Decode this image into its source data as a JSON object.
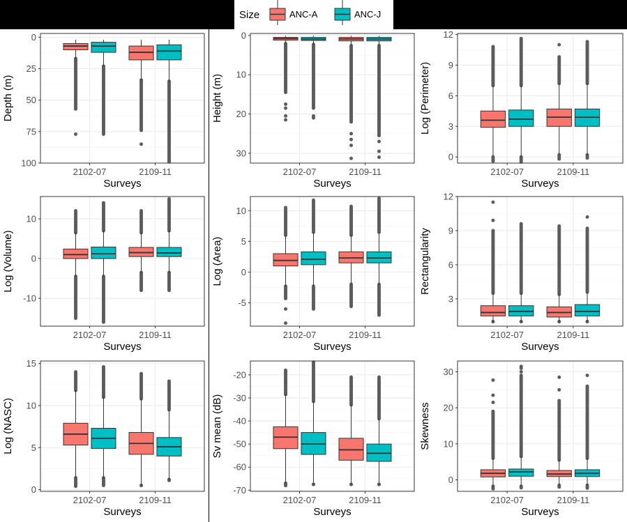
{
  "legend": {
    "title": "Size",
    "items": [
      {
        "label": "ANC-A",
        "color": "#F8766D"
      },
      {
        "label": "ANC-J",
        "color": "#00BFC4"
      }
    ],
    "placement": "top-center"
  },
  "colors": {
    "panel_background": "#FFFFFF",
    "grid_major": "#EBEBEB",
    "grid_minor": "#F5F5F5",
    "panel_border": "#333333",
    "outlier": "#5C5C5C",
    "box_outline": "#333333"
  },
  "chart_data": [
    {
      "type": "box",
      "ylabel": "Depth (m)",
      "xlabel": "Surveys",
      "reversed": true,
      "ylim": [
        -3,
        100
      ],
      "yticks": [
        0,
        25,
        50,
        75,
        100
      ],
      "categories": [
        "2102-07",
        "2109-11"
      ],
      "series": [
        {
          "name": "ANC-A",
          "boxes": [
            {
              "lower_whisker": 2,
              "q1": 5,
              "median": 7,
              "q3": 10,
              "upper_whisker": 17,
              "outliers_from": 17,
              "outliers_to": 57,
              "extreme_outliers": [
                77
              ]
            },
            {
              "lower_whisker": 2,
              "q1": 7,
              "median": 12,
              "q3": 18,
              "upper_whisker": 34,
              "outliers_from": 34,
              "outliers_to": 74,
              "extreme_outliers": [
                85
              ]
            }
          ]
        },
        {
          "name": "ANC-J",
          "boxes": [
            {
              "lower_whisker": 2,
              "q1": 4,
              "median": 7,
              "q3": 12,
              "upper_whisker": 23,
              "outliers_from": 23,
              "outliers_to": 77,
              "extreme_outliers": []
            },
            {
              "lower_whisker": 2,
              "q1": 6,
              "median": 11,
              "q3": 18,
              "upper_whisker": 35,
              "outliers_from": 35,
              "outliers_to": 99,
              "extreme_outliers": []
            }
          ]
        }
      ]
    },
    {
      "type": "box",
      "ylabel": "Height (m)",
      "xlabel": "Surveys",
      "reversed": true,
      "ylim": [
        -0.5,
        32.5
      ],
      "yticks": [
        0,
        10,
        20,
        30
      ],
      "categories": [
        "2102-07",
        "2109-11"
      ],
      "series": [
        {
          "name": "ANC-A",
          "boxes": [
            {
              "lower_whisker": 0.1,
              "q1": 0.5,
              "median": 0.8,
              "q3": 1.2,
              "upper_whisker": 2.1,
              "outliers_from": 2.1,
              "outliers_to": 14.5,
              "extreme_outliers": [
                17.5,
                18.5,
                20.5,
                21.5
              ]
            },
            {
              "lower_whisker": 0.1,
              "q1": 0.5,
              "median": 0.9,
              "q3": 1.4,
              "upper_whisker": 2.6,
              "outliers_from": 2.6,
              "outliers_to": 22,
              "extreme_outliers": [
                25,
                26.5,
                28,
                31.3
              ]
            }
          ]
        },
        {
          "name": "ANC-J",
          "boxes": [
            {
              "lower_whisker": 0.1,
              "q1": 0.5,
              "median": 0.9,
              "q3": 1.3,
              "upper_whisker": 2.3,
              "outliers_from": 2.3,
              "outliers_to": 18.5,
              "extreme_outliers": [
                20.5,
                21
              ]
            },
            {
              "lower_whisker": 0.1,
              "q1": 0.5,
              "median": 0.9,
              "q3": 1.4,
              "upper_whisker": 2.6,
              "outliers_from": 2.6,
              "outliers_to": 25.5,
              "extreme_outliers": [
                27,
                29.5,
                31
              ]
            }
          ]
        }
      ]
    },
    {
      "type": "box",
      "ylabel": "Log (Perimeter)",
      "xlabel": "Surveys",
      "reversed": false,
      "ylim": [
        -0.6,
        12.1
      ],
      "yticks": [
        0,
        3,
        6,
        9,
        12
      ],
      "categories": [
        "2102-07",
        "2109-11"
      ],
      "series": [
        {
          "name": "ANC-A",
          "boxes": [
            {
              "lower_whisker": 0,
              "q1": 2.9,
              "median": 3.6,
              "q3": 4.5,
              "upper_whisker": 7.0,
              "outliers_from": 7.0,
              "outliers_to": 10.8,
              "low_outliers_from": -0.4,
              "low_outliers_to": 0,
              "extreme_outliers": []
            },
            {
              "lower_whisker": 0.2,
              "q1": 3.0,
              "median": 3.9,
              "q3": 4.7,
              "upper_whisker": 7.2,
              "outliers_from": 7.2,
              "outliers_to": 9.8,
              "low_outliers_from": -0.2,
              "low_outliers_to": 0.2,
              "extreme_outliers": [
                11.0
              ]
            }
          ]
        },
        {
          "name": "ANC-J",
          "boxes": [
            {
              "lower_whisker": 0,
              "q1": 3.0,
              "median": 3.7,
              "q3": 4.6,
              "upper_whisker": 7.0,
              "outliers_from": 7.0,
              "outliers_to": 11.6,
              "low_outliers_from": -0.5,
              "low_outliers_to": 0,
              "extreme_outliers": []
            },
            {
              "lower_whisker": 0.2,
              "q1": 3.0,
              "median": 3.9,
              "q3": 4.7,
              "upper_whisker": 7.2,
              "outliers_from": 7.2,
              "outliers_to": 11.3,
              "low_outliers_from": -0.1,
              "low_outliers_to": 0.2,
              "extreme_outliers": []
            }
          ]
        }
      ]
    },
    {
      "type": "box",
      "ylabel": "Log (Volume)",
      "xlabel": "Surveys",
      "reversed": false,
      "ylim": [
        -17,
        15.6
      ],
      "yticks": [
        -10,
        0,
        10
      ],
      "categories": [
        "2102-07",
        "2109-11"
      ],
      "series": [
        {
          "name": "ANC-A",
          "boxes": [
            {
              "lower_whisker": -4.5,
              "q1": 0,
              "median": 1,
              "q3": 2.4,
              "upper_whisker": 6.5,
              "outliers_from": 6.5,
              "outliers_to": 12,
              "low_outliers_from": -15,
              "low_outliers_to": -4.5,
              "extreme_outliers": []
            },
            {
              "lower_whisker": -3.5,
              "q1": 0.5,
              "median": 1.5,
              "q3": 2.8,
              "upper_whisker": 6.5,
              "outliers_from": 6.5,
              "outliers_to": 12,
              "low_outliers_from": -8,
              "low_outliers_to": -3.5,
              "extreme_outliers": []
            }
          ]
        },
        {
          "name": "ANC-J",
          "boxes": [
            {
              "lower_whisker": -4.5,
              "q1": 0,
              "median": 1.2,
              "q3": 2.9,
              "upper_whisker": 7.0,
              "outliers_from": 7.0,
              "outliers_to": 14,
              "low_outliers_from": -16,
              "low_outliers_to": -4.5,
              "extreme_outliers": []
            },
            {
              "lower_whisker": -3.5,
              "q1": 0.5,
              "median": 1.4,
              "q3": 2.8,
              "upper_whisker": 7.0,
              "outliers_from": 7.0,
              "outliers_to": 15,
              "low_outliers_from": -8,
              "low_outliers_to": -3.5,
              "extreme_outliers": []
            }
          ]
        }
      ]
    },
    {
      "type": "box",
      "ylabel": "Log (Area)",
      "xlabel": "Surveys",
      "reversed": false,
      "ylim": [
        -8.8,
        12.3
      ],
      "yticks": [
        -5,
        0,
        5,
        10
      ],
      "categories": [
        "2102-07",
        "2109-11"
      ],
      "series": [
        {
          "name": "ANC-A",
          "boxes": [
            {
              "lower_whisker": -2.3,
              "q1": 1,
              "median": 1.9,
              "q3": 3,
              "upper_whisker": 6,
              "outliers_from": 6,
              "outliers_to": 10.5,
              "low_outliers_from": -4.3,
              "low_outliers_to": -2.3,
              "extreme_outliers": [
                -6,
                -8.3
              ]
            },
            {
              "lower_whisker": -2,
              "q1": 1.5,
              "median": 2.3,
              "q3": 3.3,
              "upper_whisker": 6,
              "outliers_from": 6,
              "outliers_to": 10.7,
              "low_outliers_from": -5.6,
              "low_outliers_to": -2,
              "extreme_outliers": []
            }
          ]
        },
        {
          "name": "ANC-J",
          "boxes": [
            {
              "lower_whisker": -2.3,
              "q1": 1.2,
              "median": 2.1,
              "q3": 3.3,
              "upper_whisker": 6.5,
              "outliers_from": 6.5,
              "outliers_to": 11.7,
              "low_outliers_from": -6,
              "low_outliers_to": -2.3,
              "extreme_outliers": []
            },
            {
              "lower_whisker": -2,
              "q1": 1.5,
              "median": 2.3,
              "q3": 3.3,
              "upper_whisker": 6.5,
              "outliers_from": 6.5,
              "outliers_to": 12,
              "low_outliers_from": -7,
              "low_outliers_to": -2,
              "extreme_outliers": []
            }
          ]
        }
      ]
    },
    {
      "type": "box",
      "ylabel": "Rectangularity",
      "xlabel": "Surveys",
      "reversed": false,
      "ylim": [
        0.6,
        12
      ],
      "yticks": [
        3,
        6,
        9,
        12
      ],
      "categories": [
        "2102-07",
        "2109-11"
      ],
      "series": [
        {
          "name": "ANC-A",
          "boxes": [
            {
              "lower_whisker": 1,
              "q1": 1.5,
              "median": 1.8,
              "q3": 2.4,
              "upper_whisker": 3.5,
              "outliers_from": 3.5,
              "outliers_to": 9,
              "low_outliers_from": 1,
              "low_outliers_to": 1,
              "extreme_outliers": [
                9.9,
                11.5
              ]
            },
            {
              "lower_whisker": 1,
              "q1": 1.4,
              "median": 1.8,
              "q3": 2.3,
              "upper_whisker": 3.4,
              "outliers_from": 3.4,
              "outliers_to": 9.4,
              "low_outliers_from": 1,
              "low_outliers_to": 1,
              "extreme_outliers": []
            }
          ]
        },
        {
          "name": "ANC-J",
          "boxes": [
            {
              "lower_whisker": 1,
              "q1": 1.5,
              "median": 1.9,
              "q3": 2.4,
              "upper_whisker": 3.5,
              "outliers_from": 3.5,
              "outliers_to": 9.6,
              "low_outliers_from": 1,
              "low_outliers_to": 1,
              "extreme_outliers": []
            },
            {
              "lower_whisker": 1,
              "q1": 1.5,
              "median": 1.9,
              "q3": 2.5,
              "upper_whisker": 3.6,
              "outliers_from": 3.6,
              "outliers_to": 9.2,
              "low_outliers_from": 1,
              "low_outliers_to": 1,
              "extreme_outliers": [
                10.2
              ]
            }
          ]
        }
      ]
    },
    {
      "type": "box",
      "ylabel": "Log (NASC)",
      "xlabel": "Surveys",
      "reversed": false,
      "ylim": [
        -0.2,
        15.3
      ],
      "yticks": [
        0,
        5,
        10,
        15
      ],
      "categories": [
        "2102-07",
        "2109-11"
      ],
      "series": [
        {
          "name": "ANC-A",
          "boxes": [
            {
              "lower_whisker": 1.4,
              "q1": 5.3,
              "median": 6.6,
              "q3": 7.9,
              "upper_whisker": 11.8,
              "outliers_from": 11.8,
              "outliers_to": 14,
              "low_outliers_from": 0.4,
              "low_outliers_to": 1.4,
              "extreme_outliers": []
            },
            {
              "lower_whisker": 0.5,
              "q1": 4.2,
              "median": 5.5,
              "q3": 6.8,
              "upper_whisker": 10.8,
              "outliers_from": 10.8,
              "outliers_to": 13.8,
              "low_outliers_from": 0.5,
              "low_outliers_to": 0.5,
              "extreme_outliers": []
            }
          ]
        },
        {
          "name": "ANC-J",
          "boxes": [
            {
              "lower_whisker": 1.4,
              "q1": 4.9,
              "median": 6.1,
              "q3": 7.3,
              "upper_whisker": 11.0,
              "outliers_from": 11.0,
              "outliers_to": 14.6,
              "low_outliers_from": 0.5,
              "low_outliers_to": 1.4,
              "extreme_outliers": []
            },
            {
              "lower_whisker": 1.2,
              "q1": 4.0,
              "median": 5.1,
              "q3": 6.2,
              "upper_whisker": 9.5,
              "outliers_from": 9.5,
              "outliers_to": 12.9,
              "low_outliers_from": 1.2,
              "low_outliers_to": 1.2,
              "extreme_outliers": [
                1.1
              ]
            }
          ]
        }
      ]
    },
    {
      "type": "box",
      "ylabel": "Sv mean (dB)",
      "xlabel": "Surveys",
      "reversed": false,
      "ylim": [
        -70.5,
        -14
      ],
      "yticks": [
        -70,
        -60,
        -50,
        -40,
        -30,
        -20
      ],
      "categories": [
        "2102-07",
        "2109-11"
      ],
      "series": [
        {
          "name": "ANC-A",
          "boxes": [
            {
              "lower_whisker": -67,
              "q1": -52,
              "median": -47,
              "q3": -42.5,
              "upper_whisker": -28.5,
              "outliers_from": -28.5,
              "outliers_to": -18,
              "low_outliers_from": -68,
              "low_outliers_to": -67,
              "extreme_outliers": []
            },
            {
              "lower_whisker": -67.5,
              "q1": -57,
              "median": -52.5,
              "q3": -47.5,
              "upper_whisker": -33,
              "outliers_from": -33,
              "outliers_to": -21,
              "low_outliers_from": -67.5,
              "low_outliers_to": -67.5,
              "extreme_outliers": []
            }
          ]
        },
        {
          "name": "ANC-J",
          "boxes": [
            {
              "lower_whisker": -67.5,
              "q1": -54.5,
              "median": -50,
              "q3": -45,
              "upper_whisker": -31.5,
              "outliers_from": -31.5,
              "outliers_to": -14.5,
              "low_outliers_from": -67.5,
              "low_outliers_to": -67.5,
              "extreme_outliers": []
            },
            {
              "lower_whisker": -67.5,
              "q1": -57.5,
              "median": -54,
              "q3": -50,
              "upper_whisker": -39,
              "outliers_from": -39,
              "outliers_to": -21,
              "low_outliers_from": -67.5,
              "low_outliers_to": -67.5,
              "extreme_outliers": []
            }
          ]
        }
      ]
    },
    {
      "type": "box",
      "ylabel": "Skewness",
      "xlabel": "Surveys",
      "reversed": false,
      "ylim": [
        -3.2,
        33
      ],
      "yticks": [
        0,
        10,
        20,
        30
      ],
      "categories": [
        "2102-07",
        "2109-11"
      ],
      "series": [
        {
          "name": "ANC-A",
          "boxes": [
            {
              "lower_whisker": -1.8,
              "q1": 0.8,
              "median": 1.8,
              "q3": 2.8,
              "upper_whisker": 6,
              "outliers_from": 6,
              "outliers_to": 19,
              "low_outliers_from": -2.5,
              "low_outliers_to": -1.8,
              "extreme_outliers": [
                21.5,
                23.5,
                27.7
              ]
            },
            {
              "lower_whisker": -1.5,
              "q1": 0.9,
              "median": 1.6,
              "q3": 2.6,
              "upper_whisker": 5.5,
              "outliers_from": 5.5,
              "outliers_to": 22,
              "low_outliers_from": -2,
              "low_outliers_to": -1.5,
              "extreme_outliers": [
                25,
                28.5
              ]
            }
          ]
        },
        {
          "name": "ANC-J",
          "boxes": [
            {
              "lower_whisker": -1.8,
              "q1": 1,
              "median": 2.2,
              "q3": 3,
              "upper_whisker": 6.5,
              "outliers_from": 6.5,
              "outliers_to": 29,
              "low_outliers_from": -2.2,
              "low_outliers_to": -1.8,
              "extreme_outliers": [
                30,
                31,
                31.5
              ]
            },
            {
              "lower_whisker": -1.5,
              "q1": 0.9,
              "median": 1.8,
              "q3": 2.8,
              "upper_whisker": 6,
              "outliers_from": 6,
              "outliers_to": 26,
              "low_outliers_from": -2.3,
              "low_outliers_to": -1.5,
              "extreme_outliers": [
                29
              ]
            }
          ]
        }
      ]
    }
  ]
}
